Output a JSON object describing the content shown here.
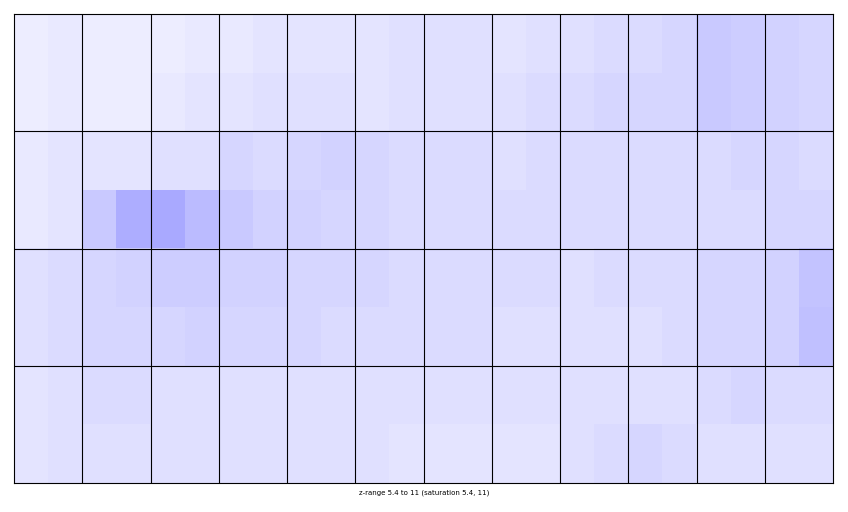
{
  "chart_data": {
    "type": "heatmap",
    "caption": "z-range 5.4 to 11 (saturation 5.4, 11)",
    "zlim": [
      5.4,
      11
    ],
    "color": "#0000ff",
    "tick_labels": false,
    "cells": [
      [
        5.8,
        5.9,
        5.8,
        5.8,
        5.8,
        5.9,
        5.9,
        6.0,
        6.0,
        6.0,
        6.0,
        6.1,
        6.1,
        6.1,
        6.0,
        6.1,
        6.1,
        6.2,
        6.2,
        6.3,
        6.6,
        6.5,
        6.4,
        6.3
      ],
      [
        5.8,
        5.9,
        5.8,
        5.8,
        5.9,
        6.0,
        6.0,
        6.1,
        6.1,
        6.1,
        6.0,
        6.1,
        6.1,
        6.1,
        6.1,
        6.2,
        6.2,
        6.3,
        6.3,
        6.3,
        6.6,
        6.5,
        6.4,
        6.3
      ],
      [
        5.9,
        6.0,
        6.0,
        6.0,
        6.1,
        6.1,
        6.3,
        6.2,
        6.3,
        6.4,
        6.3,
        6.2,
        6.2,
        6.2,
        6.1,
        6.2,
        6.2,
        6.2,
        6.2,
        6.2,
        6.2,
        6.3,
        6.3,
        6.2
      ],
      [
        5.9,
        6.0,
        6.6,
        7.2,
        7.3,
        6.9,
        6.6,
        6.4,
        6.4,
        6.3,
        6.3,
        6.2,
        6.2,
        6.2,
        6.2,
        6.2,
        6.2,
        6.2,
        6.2,
        6.2,
        6.2,
        6.2,
        6.3,
        6.3
      ],
      [
        6.1,
        6.2,
        6.3,
        6.4,
        6.5,
        6.5,
        6.4,
        6.4,
        6.3,
        6.3,
        6.3,
        6.2,
        6.2,
        6.2,
        6.2,
        6.2,
        6.1,
        6.2,
        6.2,
        6.2,
        6.3,
        6.3,
        6.4,
        6.7
      ],
      [
        6.1,
        6.2,
        6.3,
        6.3,
        6.3,
        6.4,
        6.3,
        6.3,
        6.3,
        6.2,
        6.2,
        6.2,
        6.2,
        6.2,
        6.1,
        6.1,
        6.1,
        6.1,
        6.1,
        6.2,
        6.3,
        6.3,
        6.4,
        6.8
      ],
      [
        6.0,
        6.1,
        6.2,
        6.2,
        6.1,
        6.1,
        6.1,
        6.1,
        6.1,
        6.1,
        6.1,
        6.1,
        6.1,
        6.1,
        6.1,
        6.1,
        6.1,
        6.1,
        6.1,
        6.1,
        6.2,
        6.3,
        6.2,
        6.2
      ],
      [
        6.0,
        6.1,
        6.1,
        6.1,
        6.1,
        6.1,
        6.1,
        6.1,
        6.1,
        6.1,
        6.1,
        6.0,
        6.0,
        6.0,
        6.0,
        6.0,
        6.1,
        6.2,
        6.3,
        6.2,
        6.1,
        6.1,
        6.1,
        6.1
      ]
    ]
  }
}
